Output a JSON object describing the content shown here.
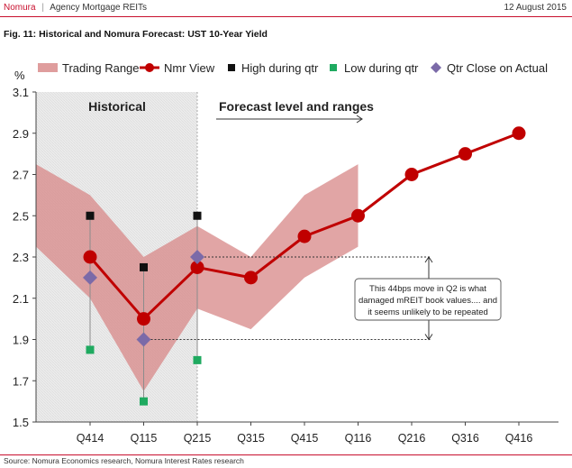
{
  "header": {
    "brand": "Nomura",
    "separator": "|",
    "report": "Agency Mortgage REITs",
    "date": "12 August 2015"
  },
  "figure": {
    "title": "Fig. 11: Historical and Nomura Forecast: UST 10-Year Yield",
    "source": "Source: Nomura Economics research, Nomura Interest Rates research"
  },
  "chart_data": {
    "type": "line",
    "title": "Fig. 11: Historical and Nomura Forecast: UST 10-Year Yield",
    "ylabel": "%",
    "xlabel": "",
    "ylim": [
      1.5,
      3.1
    ],
    "yticks": [
      1.5,
      1.7,
      1.9,
      2.1,
      2.3,
      2.5,
      2.7,
      2.9,
      3.1
    ],
    "ytick_labels": [
      "1.5",
      "1.7",
      "1.9",
      "2.1",
      "2.3",
      "2.5",
      "2.7",
      "2.9",
      "3.1"
    ],
    "categories": [
      "Q414",
      "Q115",
      "Q215",
      "Q315",
      "Q415",
      "Q116",
      "Q216",
      "Q316",
      "Q416"
    ],
    "legend_position": "top",
    "legend": [
      "Trading Range",
      "Nmr View",
      "High during qtr",
      "Low during qtr",
      "Qtr Close on Actual"
    ],
    "series": [
      {
        "name": "Trading Range",
        "color": "#d98c8c",
        "lower": [
          2.1,
          1.65,
          2.05,
          1.95,
          2.2,
          2.35
        ],
        "upper": [
          2.6,
          2.3,
          2.45,
          2.3,
          2.6,
          2.75
        ],
        "band_start_x": -1,
        "band_start_lower": 2.35,
        "band_start_upper": 2.75
      },
      {
        "name": "Nmr View",
        "color": "#c00000",
        "values": [
          2.3,
          2.0,
          2.25,
          2.2,
          2.4,
          2.5,
          2.7,
          2.8,
          2.9
        ]
      },
      {
        "name": "High during qtr",
        "color": "#111111",
        "values": [
          2.5,
          2.25,
          2.5,
          null,
          null,
          null,
          null,
          null,
          null
        ]
      },
      {
        "name": "Low during qtr",
        "color": "#1faa60",
        "values": [
          1.85,
          1.6,
          1.8,
          null,
          null,
          null,
          null,
          null,
          null
        ]
      },
      {
        "name": "Qtr Close on Actual",
        "color": "#7b6aa8",
        "values": [
          2.2,
          1.9,
          2.3,
          null,
          null,
          null,
          null,
          null,
          null
        ]
      }
    ],
    "shaded_region": {
      "label": "Historical",
      "from_category": -1,
      "to_category": 2
    },
    "annotations": {
      "forecast_label": "Forecast level and ranges",
      "callout": [
        "This 44bps move in Q2 is what",
        "damaged mREIT book values.... and",
        "it seems unlikely to be repeated"
      ],
      "callout_bracket_values": [
        2.3,
        1.9
      ]
    }
  }
}
